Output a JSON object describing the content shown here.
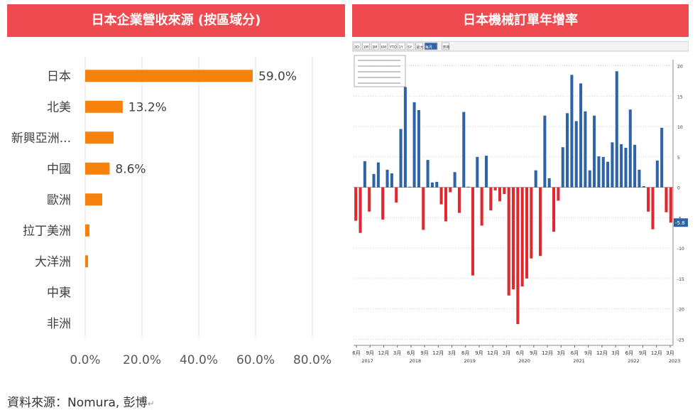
{
  "left_title": "日本企業營收來源 (按區域分)",
  "right_title": "日本機械訂單年增率",
  "source_text": "資料來源：Nomura, 彭博",
  "colors": {
    "title_bg": "#ef4a4f",
    "bar": "#f6820d",
    "positive": "#2e63a6",
    "negative": "#e0282e"
  },
  "chart_data": [
    {
      "type": "bar",
      "orientation": "horizontal",
      "title": "日本企業營收來源 (按區域分)",
      "categories": [
        "日本",
        "北美",
        "新興亞洲...",
        "中國",
        "歐洲",
        "拉丁美洲",
        "大洋洲",
        "中東",
        "非洲"
      ],
      "values": [
        59.0,
        13.2,
        10.0,
        8.6,
        6.0,
        1.5,
        1.0,
        0,
        0
      ],
      "data_labels": [
        "59.0%",
        "13.2%",
        "",
        "8.6%",
        "",
        "",
        "",
        "",
        ""
      ],
      "xlim": [
        0,
        80
      ],
      "xticks": [
        "0.0%",
        "20.0%",
        "40.0%",
        "60.0%",
        "80.0%"
      ],
      "grid": true
    },
    {
      "type": "bar",
      "title": "日本機械訂單年增率",
      "ylim": [
        -26,
        21
      ],
      "yticks": [
        "20",
        "15",
        "10",
        "5",
        "0",
        "-5",
        "-10",
        "-15",
        "-20",
        "-25"
      ],
      "x_month_labels": [
        "6月",
        "9月",
        "12月",
        "3月",
        "6月",
        "9月",
        "12月",
        "3月",
        "6月",
        "9月",
        "12月",
        "3月",
        "6月",
        "9月",
        "12月",
        "3月",
        "6月",
        "9月",
        "12月",
        "3月",
        "6月",
        "9月",
        "12月",
        "3月"
      ],
      "x_year_labels": [
        "2017",
        "2018",
        "2019",
        "2020",
        "2021",
        "2022",
        "2023"
      ],
      "last_value_label": "-5.8",
      "toolbar_labels": [
        "3D",
        "1M",
        "3M",
        "6M",
        "YTD",
        "1Y",
        "5Y",
        "最大",
        "每月",
        "表格"
      ],
      "values": [
        -5.5,
        -7.5,
        4.3,
        -4.0,
        2.2,
        4.1,
        -5.3,
        2.9,
        2.3,
        -2.5,
        9.6,
        16.5,
        0.1,
        14.0,
        12.7,
        -7.0,
        4.5,
        0.8,
        0.9,
        -2.8,
        -5.6,
        -0.8,
        2.5,
        -4.2,
        12.4,
        0.1,
        -14.5,
        5.0,
        -6.3,
        5.2,
        -3.8,
        -0.5,
        -2.3,
        -1.1,
        -17.8,
        -16.8,
        -22.5,
        -16.3,
        -15.0,
        -11.7,
        2.8,
        -11.3,
        11.8,
        1.5,
        -7.3,
        -2.2,
        6.6,
        12.2,
        18.5,
        10.9,
        17.1,
        12.5,
        2.8,
        11.8,
        5.1,
        5.0,
        4.2,
        7.4,
        19.1,
        7.1,
        6.5,
        12.8,
        7.0,
        2.9,
        0.2,
        -4.0,
        -6.9,
        4.4,
        9.8,
        -4.1,
        -5.8
      ]
    }
  ]
}
